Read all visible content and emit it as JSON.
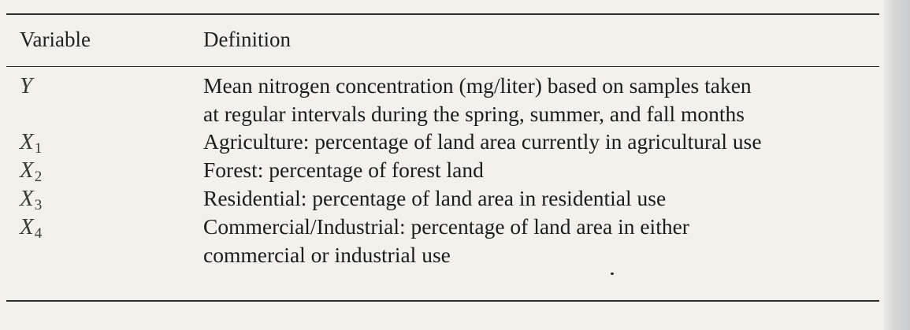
{
  "table": {
    "headers": {
      "variable": "Variable",
      "definition": "Definition"
    },
    "rows": [
      {
        "symbol": "Y",
        "subscript": "",
        "definition_lines": [
          "Mean nitrogen concentration (mg/liter) based on samples taken",
          "at regular intervals during the spring, summer, and fall months"
        ]
      },
      {
        "symbol": "X",
        "subscript": "1",
        "definition_lines": [
          "Agriculture: percentage of land area currently in agricultural use"
        ]
      },
      {
        "symbol": "X",
        "subscript": "2",
        "definition_lines": [
          "Forest: percentage of forest land"
        ]
      },
      {
        "symbol": "X",
        "subscript": "3",
        "definition_lines": [
          "Residential: percentage of land area in residential use"
        ]
      },
      {
        "symbol": "X",
        "subscript": "4",
        "definition_lines": [
          "Commercial/Industrial: percentage of land area in either",
          "commercial or industrial use"
        ]
      }
    ]
  }
}
